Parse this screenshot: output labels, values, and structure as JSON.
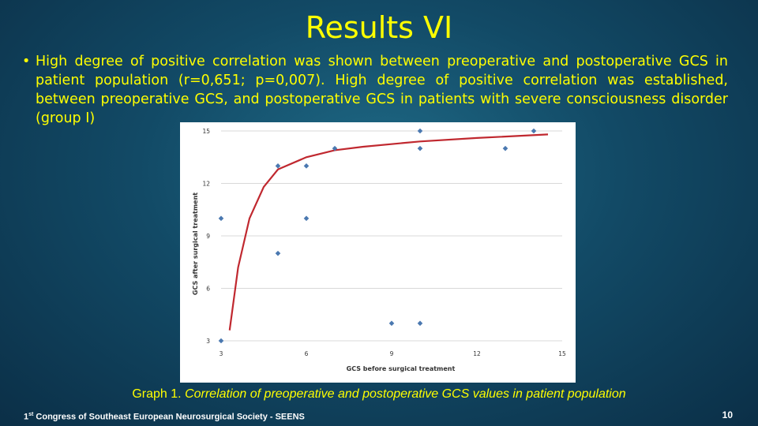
{
  "slide": {
    "title": "Results VI",
    "bullet_text": "High degree of positive correlation was shown between preoperative and postoperative GCS in patient population (r=0,651; p=0,007). High degree of positive correlation was established, between preoperative GCS, and postoperative GCS in patients with severe consciousness disorder (group I)",
    "caption_label": "Graph 1.",
    "caption_text": "Correlation of preoperative and postoperative GCS values in patient population",
    "footer_ordinal": "1",
    "footer_sup": "st",
    "footer_text": "Congress of Southeast European Neurosurgical Society - SEENS",
    "page_number": "10"
  },
  "colors": {
    "title": "#ffff00",
    "point": "#4a78b0",
    "trend": "#c0282f",
    "grid": "#d8d8d8"
  },
  "chart_data": {
    "type": "scatter",
    "title": "",
    "xlabel": "GCS before surgical treatment",
    "ylabel": "GCS after surgical treatment",
    "xlim": [
      3,
      15
    ],
    "ylim": [
      3,
      15
    ],
    "xticks": [
      3,
      6,
      9,
      12,
      15
    ],
    "yticks": [
      3,
      6,
      9,
      12,
      15
    ],
    "grid": "horizontal",
    "points": [
      {
        "x": 3,
        "y": 3
      },
      {
        "x": 3,
        "y": 10
      },
      {
        "x": 5,
        "y": 8
      },
      {
        "x": 5,
        "y": 13
      },
      {
        "x": 6,
        "y": 10
      },
      {
        "x": 6,
        "y": 13
      },
      {
        "x": 7,
        "y": 14
      },
      {
        "x": 9,
        "y": 4
      },
      {
        "x": 10,
        "y": 4
      },
      {
        "x": 10,
        "y": 14
      },
      {
        "x": 10,
        "y": 15
      },
      {
        "x": 13,
        "y": 14
      },
      {
        "x": 14,
        "y": 15
      }
    ],
    "trendline": {
      "type": "logarithmic-curve",
      "x": [
        3.3,
        3.6,
        4.0,
        4.5,
        5.0,
        6.0,
        7.0,
        8.0,
        10.0,
        12.0,
        14.5
      ],
      "y": [
        3.6,
        7.2,
        10.0,
        11.8,
        12.8,
        13.5,
        13.9,
        14.1,
        14.4,
        14.6,
        14.8
      ]
    }
  }
}
